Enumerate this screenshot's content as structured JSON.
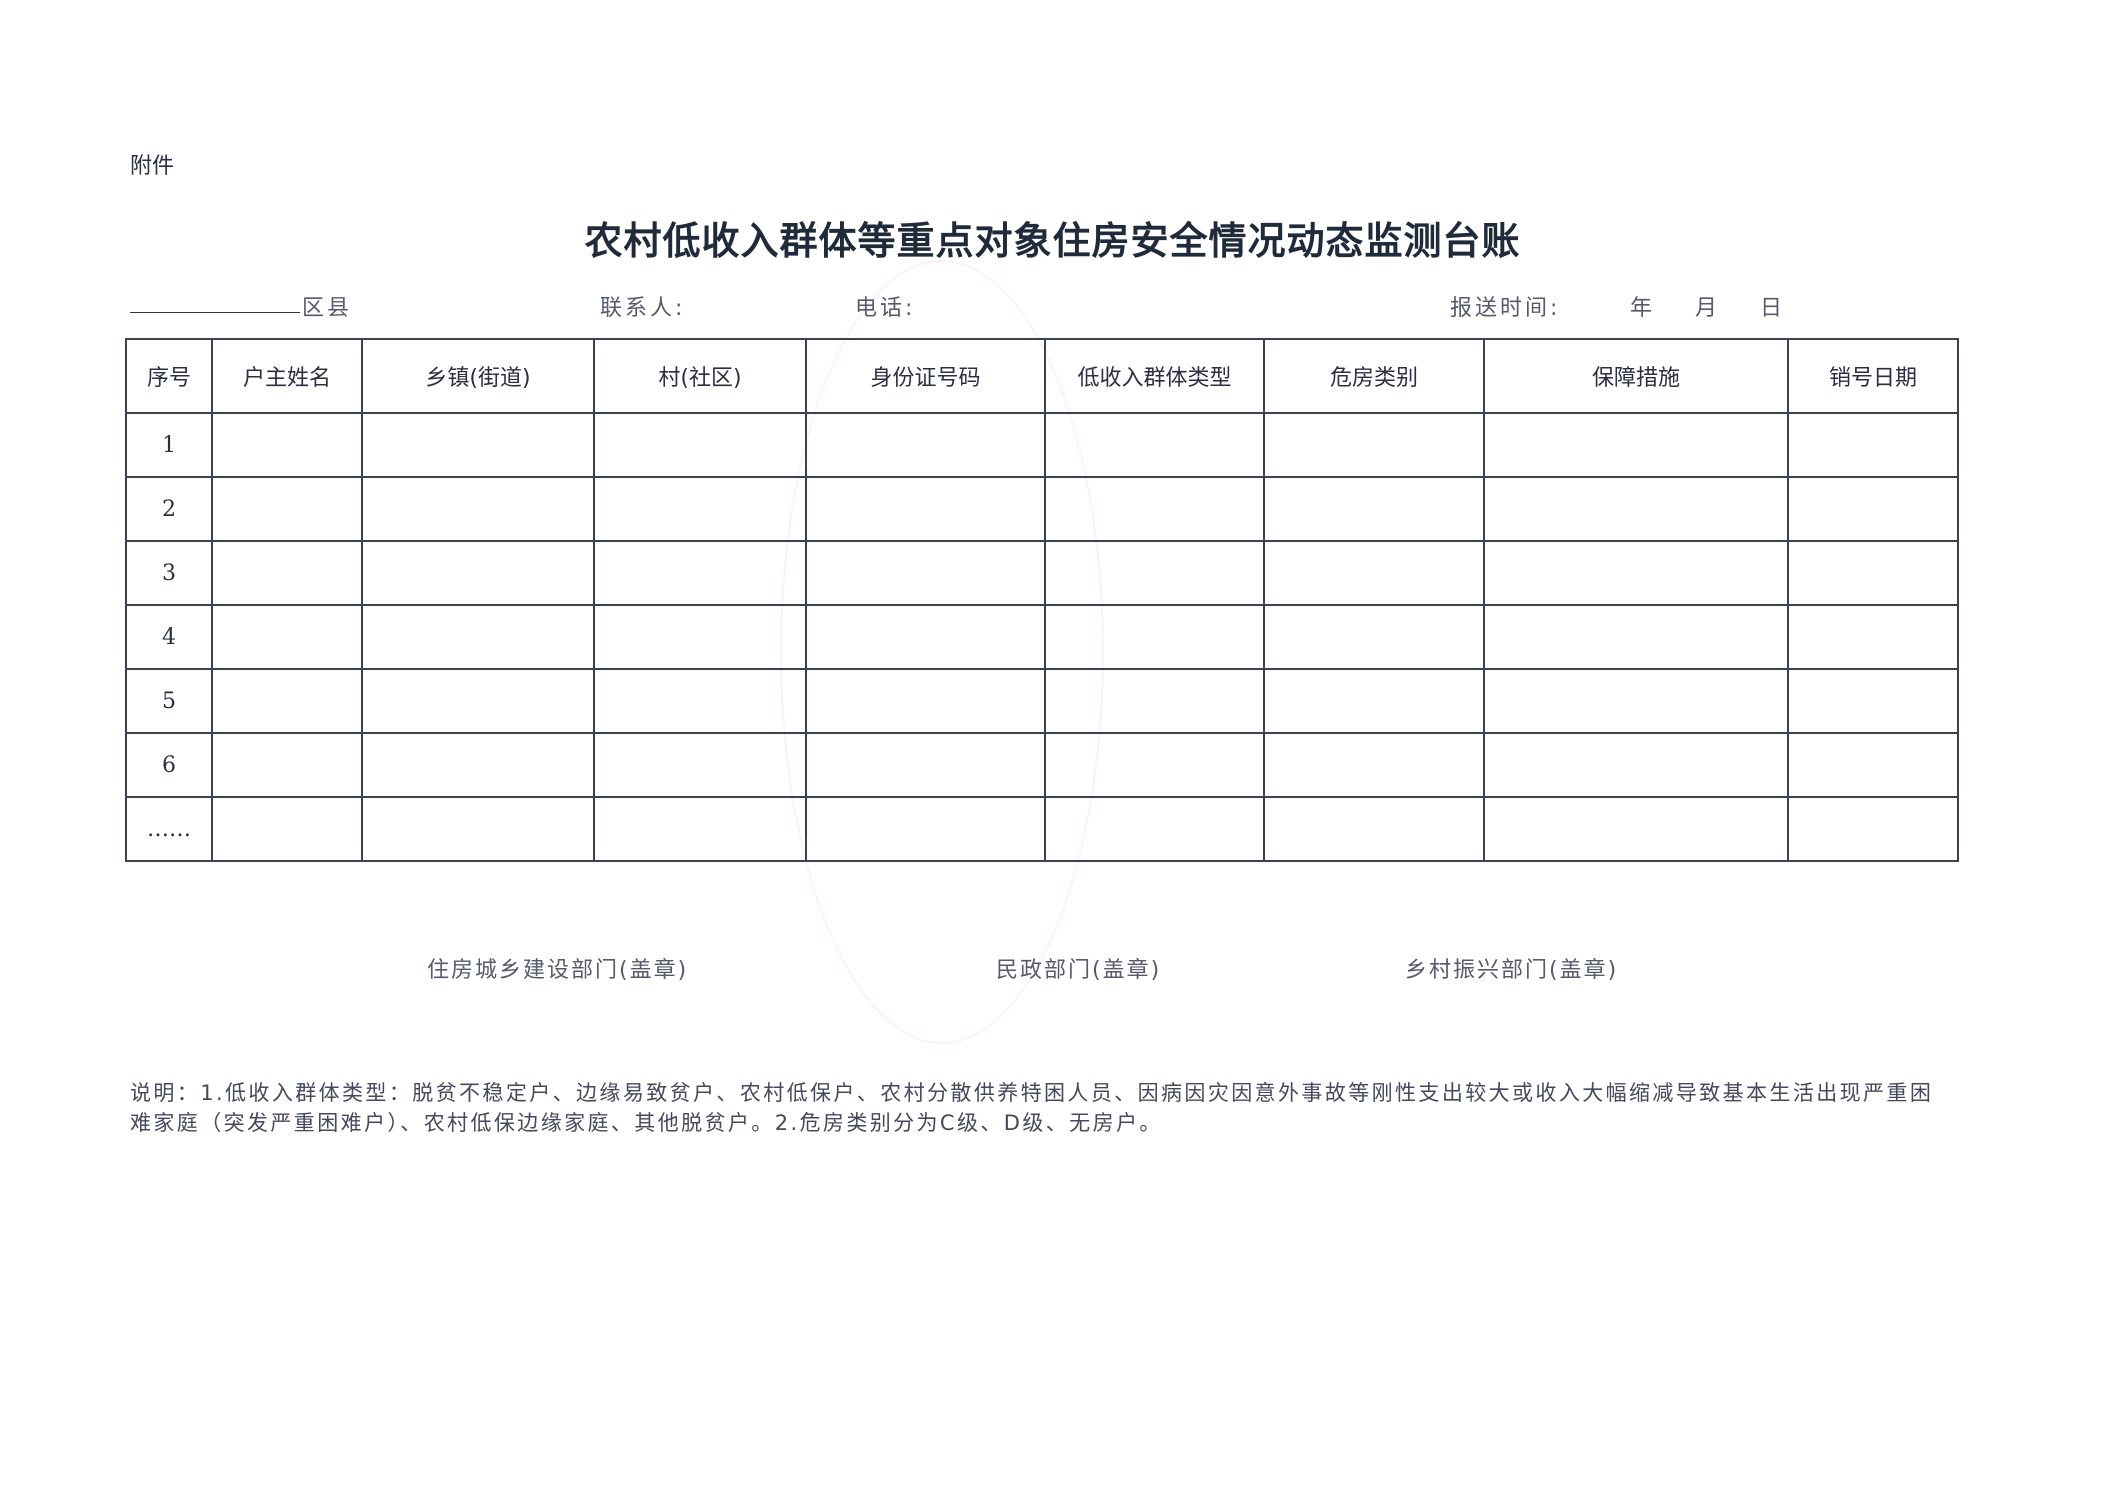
{
  "attachment_label": "附件",
  "title": "农村低收入群体等重点对象住房安全情况动态监测台账",
  "info": {
    "county_suffix": "区县",
    "contact_label": "联系人:",
    "phone_label": "电话:",
    "report_time_label": "报送时间:",
    "date_placeholder": "年 月 日"
  },
  "table": {
    "headers": [
      "序号",
      "户主姓名",
      "乡镇(街道)",
      "村(社区)",
      "身份证号码",
      "低收入群体类型",
      "危房类别",
      "保障措施",
      "销号日期"
    ],
    "rows": [
      "1",
      "2",
      "3",
      "4",
      "5",
      "6",
      "……"
    ]
  },
  "signatures": [
    "住房城乡建设部门(盖章)",
    "民政部门(盖章)",
    "乡村振兴部门(盖章)"
  ],
  "notes": "说明：1.低收入群体类型：脱贫不稳定户、边缘易致贫户、农村低保户、农村分散供养特困人员、因病因灾因意外事故等刚性支出较大或收入大幅缩减导致基本生活出现严重困难家庭（突发严重困难户）、农村低保边缘家庭、其他脱贫户。2.危房类别分为C级、D级、无房户。"
}
